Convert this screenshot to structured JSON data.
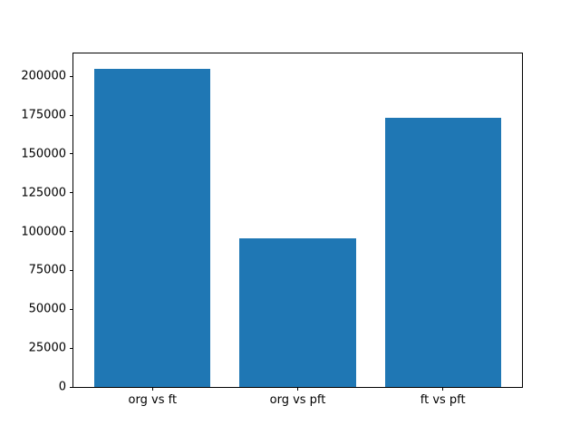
{
  "chart_data": {
    "type": "bar",
    "title": "",
    "xlabel": "",
    "ylabel": "",
    "categories": [
      "org vs ft",
      "org vs pft",
      "ft vs pft"
    ],
    "values": [
      204500,
      95500,
      173000
    ],
    "yticks": [
      0,
      25000,
      50000,
      75000,
      100000,
      125000,
      150000,
      175000,
      200000
    ],
    "ylim": [
      0,
      214700
    ],
    "xlim": [
      -0.545,
      2.545
    ],
    "bar_width": 0.8,
    "bar_color": "#1f77b4",
    "axis_color": "#000000",
    "background_color": "#ffffff",
    "grid": false,
    "legend": null
  }
}
